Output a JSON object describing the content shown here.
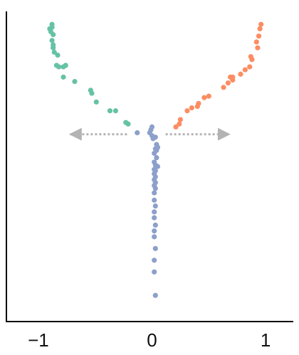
{
  "chart_data": {
    "type": "scatter",
    "title": "",
    "xlabel": "",
    "ylabel": "",
    "xlim": [
      -1.2,
      1.2
    ],
    "ylim": [
      -1.02,
      1.0
    ],
    "grid": false,
    "legend": "none",
    "x_ticks": [
      {
        "value": -1,
        "label": "−1"
      },
      {
        "value": 0,
        "label": "0"
      },
      {
        "value": 1,
        "label": "1"
      }
    ],
    "series": [
      {
        "color": "#66c2a5",
        "points": [
          [
            -0.88,
            0.96
          ],
          [
            -0.88,
            0.94
          ],
          [
            -0.9,
            0.93
          ],
          [
            -0.89,
            0.91
          ],
          [
            -0.87,
            0.89
          ],
          [
            -0.88,
            0.85
          ],
          [
            -0.87,
            0.82
          ],
          [
            -0.87,
            0.8
          ],
          [
            -0.86,
            0.77
          ],
          [
            -0.83,
            0.75
          ],
          [
            -0.84,
            0.68
          ],
          [
            -0.82,
            0.67
          ],
          [
            -0.78,
            0.67
          ],
          [
            -0.76,
            0.68
          ],
          [
            -0.78,
            0.6
          ],
          [
            -0.68,
            0.57
          ],
          [
            -0.54,
            0.51
          ],
          [
            -0.53,
            0.49
          ],
          [
            -0.49,
            0.43
          ],
          [
            -0.37,
            0.37
          ],
          [
            -0.32,
            0.37
          ],
          [
            -0.23,
            0.29
          ],
          [
            -0.21,
            0.28
          ]
        ]
      },
      {
        "color": "#fc8d62",
        "points": [
          [
            0.96,
            0.96
          ],
          [
            0.95,
            0.93
          ],
          [
            0.94,
            0.88
          ],
          [
            0.92,
            0.84
          ],
          [
            0.93,
            0.8
          ],
          [
            0.87,
            0.74
          ],
          [
            0.88,
            0.72
          ],
          [
            0.86,
            0.67
          ],
          [
            0.82,
            0.65
          ],
          [
            0.78,
            0.62
          ],
          [
            0.71,
            0.6
          ],
          [
            0.69,
            0.6
          ],
          [
            0.71,
            0.58
          ],
          [
            0.67,
            0.56
          ],
          [
            0.63,
            0.53
          ],
          [
            0.5,
            0.47
          ],
          [
            0.46,
            0.46
          ],
          [
            0.41,
            0.42
          ],
          [
            0.4,
            0.4
          ],
          [
            0.35,
            0.39
          ],
          [
            0.31,
            0.37
          ],
          [
            0.25,
            0.31
          ],
          [
            0.24,
            0.28
          ],
          [
            0.21,
            0.26
          ]
        ]
      },
      {
        "color": "#8da0cb",
        "points": [
          [
            -0.13,
            0.22
          ],
          [
            0.0,
            0.26
          ],
          [
            -0.01,
            0.24
          ],
          [
            -0.02,
            0.22
          ],
          [
            0.0,
            0.2
          ],
          [
            0.03,
            0.19
          ],
          [
            0.01,
            0.18
          ],
          [
            0.04,
            0.14
          ],
          [
            0.05,
            0.12
          ],
          [
            0.03,
            0.11
          ],
          [
            0.04,
            0.1
          ],
          [
            0.02,
            0.08
          ],
          [
            0.04,
            0.05
          ],
          [
            0.02,
            0.02
          ],
          [
            0.03,
            0.0
          ],
          [
            0.05,
            -0.01
          ],
          [
            0.02,
            -0.03
          ],
          [
            0.03,
            -0.04
          ],
          [
            0.02,
            -0.06
          ],
          [
            0.03,
            -0.08
          ],
          [
            0.02,
            -0.1
          ],
          [
            0.03,
            -0.12
          ],
          [
            0.02,
            -0.14
          ],
          [
            0.03,
            -0.16
          ],
          [
            0.02,
            -0.19
          ],
          [
            0.02,
            -0.24
          ],
          [
            0.03,
            -0.28
          ],
          [
            0.02,
            -0.32
          ],
          [
            0.02,
            -0.36
          ],
          [
            0.03,
            -0.41
          ],
          [
            0.02,
            -0.45
          ],
          [
            0.02,
            -0.49
          ],
          [
            0.03,
            -0.57
          ],
          [
            0.02,
            -0.65
          ],
          [
            0.02,
            -0.73
          ],
          [
            0.03,
            -0.89
          ]
        ]
      }
    ],
    "annotations": [
      {
        "type": "arrow",
        "from": [
          -0.22,
          0.21
        ],
        "to": [
          -0.72,
          0.21
        ],
        "color": "#b3b3b3",
        "dashed": true
      },
      {
        "type": "arrow",
        "from": [
          0.12,
          0.21
        ],
        "to": [
          0.68,
          0.21
        ],
        "color": "#b3b3b3",
        "dashed": true
      }
    ]
  }
}
